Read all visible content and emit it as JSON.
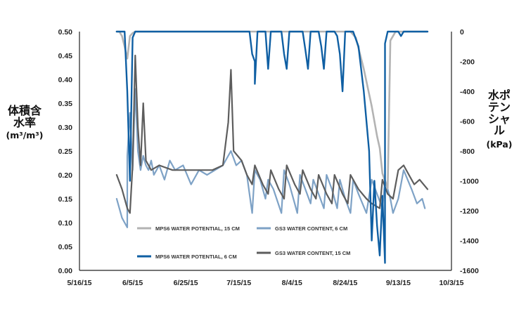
{
  "chart_data": {
    "type": "line",
    "xlabel": "",
    "x_ticks": [
      "5/16/15",
      "6/5/15",
      "6/25/15",
      "7/15/15",
      "8/4/15",
      "8/24/15",
      "9/13/15",
      "10/3/15"
    ],
    "xlim": [
      "2015-05-16",
      "2015-10-03"
    ],
    "ylabel_left": "体積含水率",
    "ylabel_left_unit": "(m³/m³)",
    "ylim_left": [
      0,
      0.5
    ],
    "y_ticks_left": [
      "0.00",
      "0.05",
      "0.10",
      "0.15",
      "0.20",
      "0.25",
      "0.30",
      "0.35",
      "0.40",
      "0.45",
      "0.50"
    ],
    "ylabel_right": "水ポテンシャル",
    "ylabel_right_unit": "(kPa)",
    "ylim_right": [
      -1600,
      0
    ],
    "y_ticks_right": [
      "0",
      "-200",
      "-400",
      "-600",
      "-800",
      "-1000",
      "-1200",
      "-1400",
      "-1600"
    ],
    "grid": false,
    "legend_position": "bottom-center",
    "colors": {
      "mps6_15cm": "#b3b3b3",
      "mps6_6cm": "#0f5fa3",
      "gs3_6cm": "#7ea2c6",
      "gs3_15cm": "#5d5d5d"
    },
    "series": [
      {
        "name": "MPS6 WATER POTENTIAL, 15 CM",
        "axis": "right",
        "points": [
          [
            "2015-05-30",
            0
          ],
          [
            "2015-05-31",
            0
          ],
          [
            "2015-06-01",
            -30
          ],
          [
            "2015-06-02",
            -100
          ],
          [
            "2015-06-03",
            -180
          ],
          [
            "2015-06-04",
            -30
          ],
          [
            "2015-06-05",
            -10
          ],
          [
            "2015-06-06",
            0
          ],
          [
            "2015-06-15",
            0
          ],
          [
            "2015-06-25",
            0
          ],
          [
            "2015-07-15",
            0
          ],
          [
            "2015-08-04",
            0
          ],
          [
            "2015-08-20",
            0
          ],
          [
            "2015-08-26",
            0
          ],
          [
            "2015-08-28",
            -40
          ],
          [
            "2015-08-31",
            -250
          ],
          [
            "2015-09-03",
            -500
          ],
          [
            "2015-09-05",
            -700
          ],
          [
            "2015-09-06",
            -780
          ],
          [
            "2015-09-07",
            -950
          ],
          [
            "2015-09-09",
            -1050
          ],
          [
            "2015-09-10",
            -60
          ],
          [
            "2015-09-12",
            0
          ],
          [
            "2015-09-24",
            0
          ]
        ]
      },
      {
        "name": "MPS6 WATER POTENTIAL, 6 CM",
        "axis": "right",
        "points": [
          [
            "2015-05-30",
            0
          ],
          [
            "2015-06-02",
            0
          ],
          [
            "2015-06-03",
            -400
          ],
          [
            "2015-06-04",
            -1000
          ],
          [
            "2015-06-05",
            -40
          ],
          [
            "2015-06-06",
            0
          ],
          [
            "2015-07-19",
            0
          ],
          [
            "2015-07-20",
            -150
          ],
          [
            "2015-07-21",
            -200
          ],
          [
            "2015-07-21",
            -350
          ],
          [
            "2015-07-22",
            0
          ],
          [
            "2015-07-25",
            0
          ],
          [
            "2015-07-26",
            -250
          ],
          [
            "2015-07-27",
            0
          ],
          [
            "2015-07-31",
            0
          ],
          [
            "2015-08-01",
            -150
          ],
          [
            "2015-08-02",
            -250
          ],
          [
            "2015-08-03",
            0
          ],
          [
            "2015-08-08",
            0
          ],
          [
            "2015-08-09",
            -120
          ],
          [
            "2015-08-10",
            -250
          ],
          [
            "2015-08-11",
            0
          ],
          [
            "2015-08-14",
            0
          ],
          [
            "2015-08-15",
            -100
          ],
          [
            "2015-08-16",
            -250
          ],
          [
            "2015-08-17",
            0
          ],
          [
            "2015-08-20",
            0
          ],
          [
            "2015-08-21",
            -30
          ],
          [
            "2015-08-22",
            -150
          ],
          [
            "2015-08-23",
            -400
          ],
          [
            "2015-08-24",
            0
          ],
          [
            "2015-08-27",
            0
          ],
          [
            "2015-08-29",
            -100
          ],
          [
            "2015-08-31",
            -400
          ],
          [
            "2015-09-02",
            -800
          ],
          [
            "2015-09-03",
            -1400
          ],
          [
            "2015-09-04",
            -1000
          ],
          [
            "2015-09-05",
            -1300
          ],
          [
            "2015-09-06",
            -1500
          ],
          [
            "2015-09-07",
            -1100
          ],
          [
            "2015-09-08",
            -1550
          ],
          [
            "2015-09-08",
            -80
          ],
          [
            "2015-09-09",
            0
          ],
          [
            "2015-09-13",
            0
          ],
          [
            "2015-09-14",
            -30
          ],
          [
            "2015-09-15",
            0
          ],
          [
            "2015-09-24",
            0
          ]
        ]
      },
      {
        "name": "GS3 WATER CONTENT, 6 CM",
        "axis": "left",
        "points": [
          [
            "2015-05-30",
            0.15
          ],
          [
            "2015-05-31",
            0.13
          ],
          [
            "2015-06-01",
            0.11
          ],
          [
            "2015-06-02",
            0.1
          ],
          [
            "2015-06-03",
            0.09
          ],
          [
            "2015-06-03",
            0.24
          ],
          [
            "2015-06-04",
            0.33
          ],
          [
            "2015-06-05",
            0.21
          ],
          [
            "2015-06-06",
            0.38
          ],
          [
            "2015-06-07",
            0.25
          ],
          [
            "2015-06-08",
            0.21
          ],
          [
            "2015-06-09",
            0.24
          ],
          [
            "2015-06-10",
            0.22
          ],
          [
            "2015-06-11",
            0.21
          ],
          [
            "2015-06-12",
            0.23
          ],
          [
            "2015-06-13",
            0.2
          ],
          [
            "2015-06-15",
            0.22
          ],
          [
            "2015-06-17",
            0.19
          ],
          [
            "2015-06-19",
            0.23
          ],
          [
            "2015-06-21",
            0.21
          ],
          [
            "2015-06-24",
            0.22
          ],
          [
            "2015-06-27",
            0.18
          ],
          [
            "2015-06-30",
            0.21
          ],
          [
            "2015-07-03",
            0.2
          ],
          [
            "2015-07-06",
            0.21
          ],
          [
            "2015-07-09",
            0.22
          ],
          [
            "2015-07-12",
            0.25
          ],
          [
            "2015-07-14",
            0.22
          ],
          [
            "2015-07-16",
            0.23
          ],
          [
            "2015-07-18",
            0.2
          ],
          [
            "2015-07-19",
            0.16
          ],
          [
            "2015-07-20",
            0.12
          ],
          [
            "2015-07-21",
            0.21
          ],
          [
            "2015-07-23",
            0.19
          ],
          [
            "2015-07-25",
            0.15
          ],
          [
            "2015-07-26",
            0.19
          ],
          [
            "2015-07-28",
            0.17
          ],
          [
            "2015-07-31",
            0.12
          ],
          [
            "2015-08-01",
            0.21
          ],
          [
            "2015-08-03",
            0.18
          ],
          [
            "2015-08-05",
            0.14
          ],
          [
            "2015-08-06",
            0.12
          ],
          [
            "2015-08-07",
            0.2
          ],
          [
            "2015-08-09",
            0.17
          ],
          [
            "2015-08-11",
            0.14
          ],
          [
            "2015-08-12",
            0.19
          ],
          [
            "2015-08-14",
            0.16
          ],
          [
            "2015-08-16",
            0.13
          ],
          [
            "2015-08-17",
            0.2
          ],
          [
            "2015-08-19",
            0.17
          ],
          [
            "2015-08-21",
            0.13
          ],
          [
            "2015-08-22",
            0.19
          ],
          [
            "2015-08-24",
            0.15
          ],
          [
            "2015-08-26",
            0.12
          ],
          [
            "2015-08-27",
            0.19
          ],
          [
            "2015-08-29",
            0.16
          ],
          [
            "2015-09-01",
            0.12
          ],
          [
            "2015-09-03",
            0.19
          ],
          [
            "2015-09-05",
            0.16
          ],
          [
            "2015-09-07",
            0.13
          ],
          [
            "2015-09-08",
            0.19
          ],
          [
            "2015-09-10",
            0.15
          ],
          [
            "2015-09-11",
            0.12
          ],
          [
            "2015-09-13",
            0.15
          ],
          [
            "2015-09-15",
            0.21
          ],
          [
            "2015-09-18",
            0.17
          ],
          [
            "2015-09-20",
            0.14
          ],
          [
            "2015-09-22",
            0.15
          ],
          [
            "2015-09-23",
            0.13
          ]
        ]
      },
      {
        "name": "GS3 WATER CONTENT, 15 CM",
        "axis": "left",
        "points": [
          [
            "2015-05-30",
            0.2
          ],
          [
            "2015-06-01",
            0.17
          ],
          [
            "2015-06-03",
            0.13
          ],
          [
            "2015-06-04",
            0.12
          ],
          [
            "2015-06-05",
            0.22
          ],
          [
            "2015-06-06",
            0.45
          ],
          [
            "2015-06-07",
            0.3
          ],
          [
            "2015-06-08",
            0.22
          ],
          [
            "2015-06-09",
            0.35
          ],
          [
            "2015-06-10",
            0.23
          ],
          [
            "2015-06-12",
            0.21
          ],
          [
            "2015-06-15",
            0.22
          ],
          [
            "2015-06-20",
            0.21
          ],
          [
            "2015-06-25",
            0.21
          ],
          [
            "2015-06-30",
            0.21
          ],
          [
            "2015-07-05",
            0.21
          ],
          [
            "2015-07-09",
            0.22
          ],
          [
            "2015-07-11",
            0.31
          ],
          [
            "2015-07-12",
            0.42
          ],
          [
            "2015-07-13",
            0.25
          ],
          [
            "2015-07-16",
            0.23
          ],
          [
            "2015-07-18",
            0.2
          ],
          [
            "2015-07-20",
            0.18
          ],
          [
            "2015-07-21",
            0.22
          ],
          [
            "2015-07-24",
            0.18
          ],
          [
            "2015-07-26",
            0.16
          ],
          [
            "2015-07-27",
            0.21
          ],
          [
            "2015-07-30",
            0.17
          ],
          [
            "2015-08-01",
            0.15
          ],
          [
            "2015-08-02",
            0.22
          ],
          [
            "2015-08-05",
            0.18
          ],
          [
            "2015-08-07",
            0.16
          ],
          [
            "2015-08-08",
            0.21
          ],
          [
            "2015-08-11",
            0.17
          ],
          [
            "2015-08-13",
            0.15
          ],
          [
            "2015-08-14",
            0.2
          ],
          [
            "2015-08-17",
            0.16
          ],
          [
            "2015-08-19",
            0.14
          ],
          [
            "2015-08-20",
            0.2
          ],
          [
            "2015-08-23",
            0.16
          ],
          [
            "2015-08-25",
            0.14
          ],
          [
            "2015-08-26",
            0.2
          ],
          [
            "2015-08-29",
            0.17
          ],
          [
            "2015-09-01",
            0.15
          ],
          [
            "2015-09-03",
            0.14
          ],
          [
            "2015-09-06",
            0.13
          ],
          [
            "2015-09-07",
            0.19
          ],
          [
            "2015-09-09",
            0.16
          ],
          [
            "2015-09-11",
            0.15
          ],
          [
            "2015-09-13",
            0.21
          ],
          [
            "2015-09-15",
            0.22
          ],
          [
            "2015-09-17",
            0.2
          ],
          [
            "2015-09-19",
            0.18
          ],
          [
            "2015-09-21",
            0.19
          ],
          [
            "2015-09-24",
            0.17
          ]
        ]
      }
    ]
  }
}
